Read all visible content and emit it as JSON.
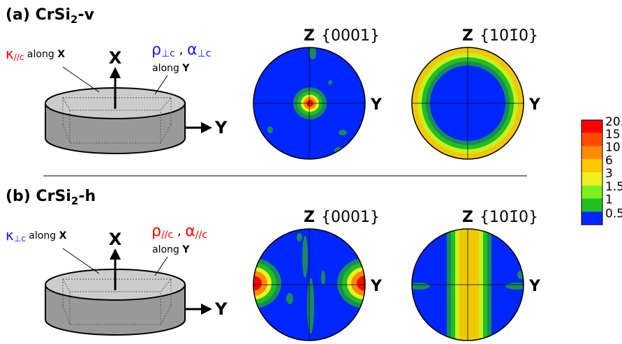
{
  "panels": [
    {
      "label": "(a) CrSi",
      "label_sub": "2",
      "label_suffix": "-v",
      "left_symbol": "κ",
      "left_sub": "//c",
      "left_text": " along ",
      "left_axis": "X",
      "rho": "ρ",
      "rho_sub": "⊥c",
      "sep": " , ",
      "alpha": "α",
      "alpha_sub": "⊥c",
      "along": "along ",
      "along_axis": "Y",
      "arrow_up": "X",
      "arrow_right": "Y",
      "pole_figures": [
        {
          "top": "Z",
          "plane": "{0001}",
          "right": "Y"
        },
        {
          "top": "Z",
          "plane": "{101̄0}",
          "right": "Y"
        }
      ]
    },
    {
      "label": "(b) CrSi",
      "label_sub": "2",
      "label_suffix": "-h",
      "left_symbol": "κ",
      "left_sub": "⊥c",
      "left_text": " along ",
      "left_axis": "X",
      "rho": "ρ",
      "rho_sub": "//c",
      "sep": " , ",
      "alpha": "α",
      "alpha_sub": "//c",
      "along": "along ",
      "along_axis": "Y",
      "arrow_up": "X",
      "arrow_right": "Y",
      "pole_figures": [
        {
          "top": "Z",
          "plane": "{0001}",
          "right": "Y"
        },
        {
          "top": "Z",
          "plane": "{101̄0}",
          "right": "Y"
        }
      ]
    }
  ],
  "colorbar": {
    "levels": [
      20.3,
      15,
      10,
      6,
      3,
      1.5,
      1,
      0.5
    ],
    "colors": [
      "#ff0000",
      "#ff4a00",
      "#ff8c00",
      "#ffc800",
      "#f0f020",
      "#7cf020",
      "#20c020",
      "#1a8a5a"
    ],
    "below_color": "#0026ff"
  }
}
